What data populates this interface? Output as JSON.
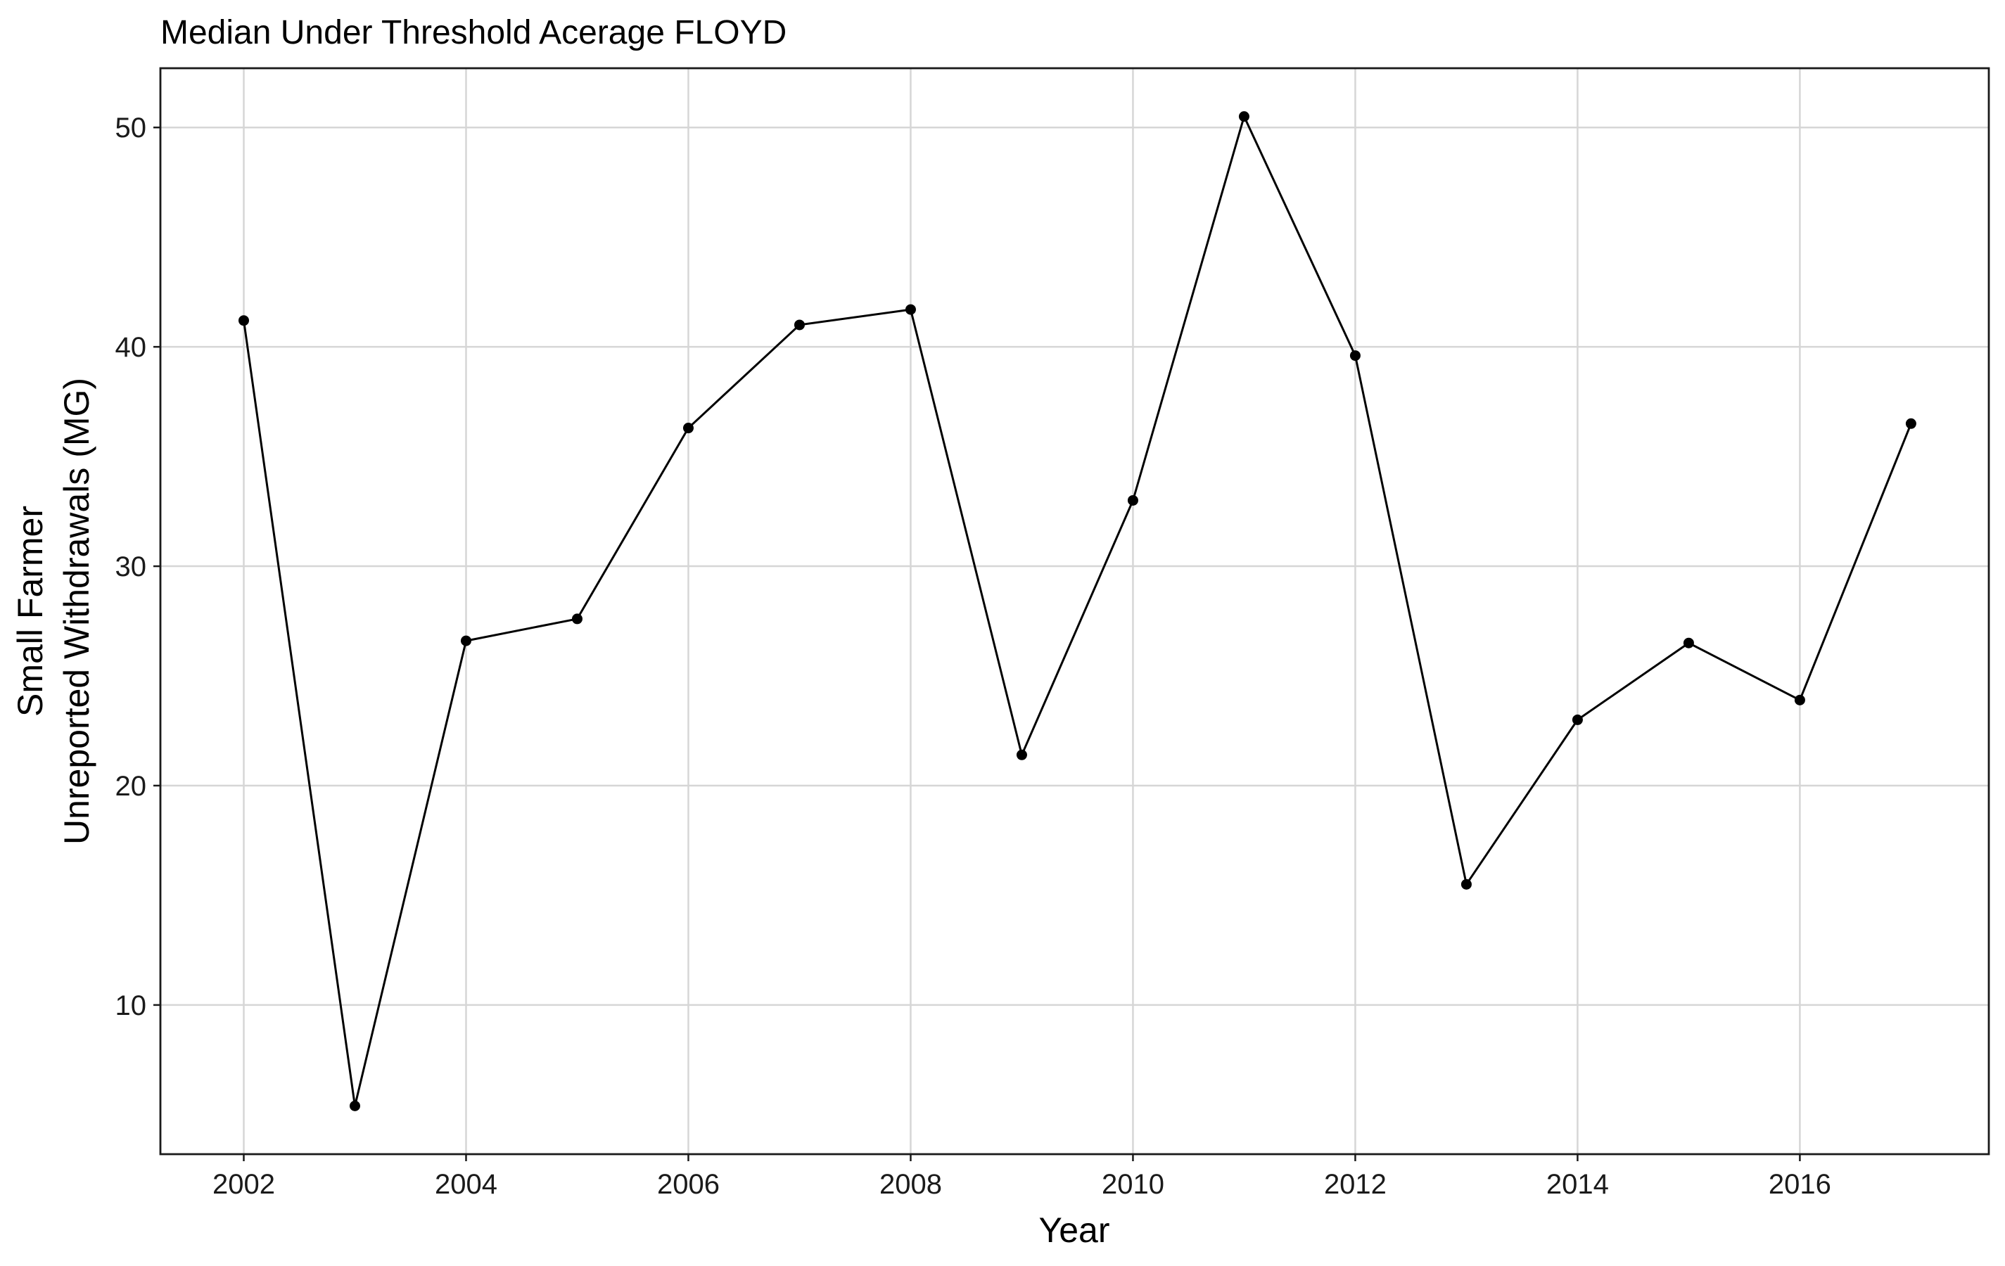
{
  "chart_data": {
    "type": "line",
    "title": "Median Under Threshold Acerage FLOYD",
    "xlabel": "Year",
    "ylabel_lines": [
      "Small Farmer",
      "Unreported Withdrawals (MG)"
    ],
    "xlim": [
      2001.25,
      2017.7
    ],
    "ylim": [
      3.2,
      52.7
    ],
    "x_ticks": [
      2002,
      2004,
      2006,
      2008,
      2010,
      2012,
      2014,
      2016
    ],
    "x_tick_labels": [
      "2002",
      "2004",
      "2006",
      "2008",
      "2010",
      "2012",
      "2014",
      "2016"
    ],
    "y_ticks": [
      10,
      20,
      30,
      40,
      50
    ],
    "y_tick_labels": [
      "10",
      "20",
      "30",
      "40",
      "50"
    ],
    "grid": true,
    "series": [
      {
        "x": [
          2002,
          2003,
          2004,
          2005,
          2006,
          2007,
          2008,
          2009,
          2010,
          2011,
          2012,
          2013,
          2014,
          2015,
          2016,
          2017
        ],
        "y": [
          41.2,
          5.4,
          26.6,
          27.6,
          36.3,
          41.0,
          41.7,
          21.4,
          33.0,
          50.5,
          39.6,
          15.5,
          23.0,
          26.5,
          23.9,
          36.5
        ],
        "color": "#000000"
      }
    ]
  }
}
